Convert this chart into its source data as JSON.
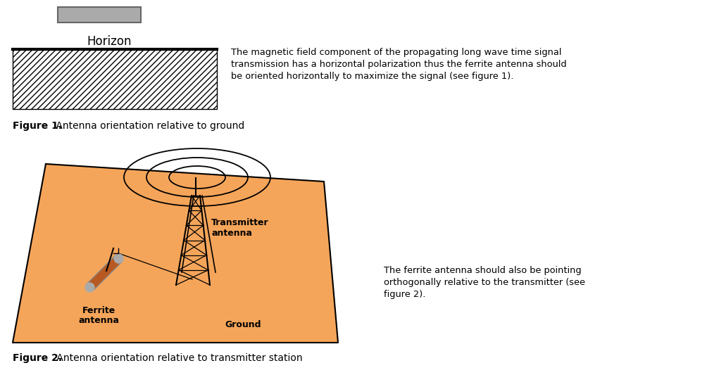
{
  "bg_color": "#ffffff",
  "orange_color": "#f5a55a",
  "fig1_caption_bold": "Figure 1.",
  "fig1_caption_rest": " Antenna orientation relative to ground",
  "fig2_caption_bold": "Figure 2.",
  "fig2_caption_rest": " Antenna orientation relative to transmitter station",
  "text1_line1": "The magnetic field component of the propagating long wave time signal",
  "text1_line2": "transmission has a horizontal polarization thus the ferrite antenna should",
  "text1_line3": "be oriented horizontally to maximize the signal (see figure 1).",
  "text2_line1": "The ferrite antenna should also be pointing",
  "text2_line2": "orthogonally relative to the transmitter (see",
  "text2_line3": "figure 2).",
  "horizon_label": "Horizon",
  "transmitter_label_1": "Transmitter",
  "transmitter_label_2": "antenna",
  "ferrite_label_1": "Ferrite",
  "ferrite_label_2": "antenna",
  "ground_label": "Ground"
}
